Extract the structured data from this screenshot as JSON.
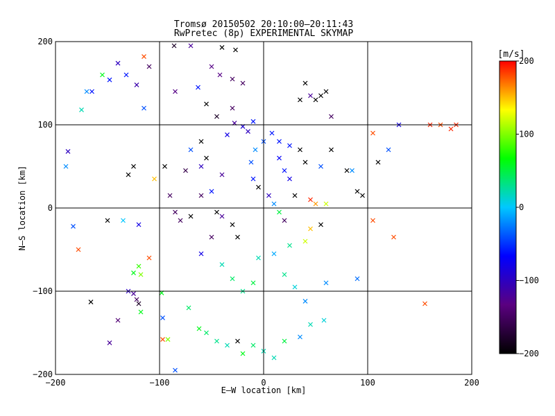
{
  "chart_data": {
    "type": "scatter",
    "title": "Tromsø 20150502 20:10:00–20:11:43",
    "subtitle": "RwPretec (8p) EXPERIMENTAL SKYMAP",
    "xlabel": "E–W location [km]",
    "ylabel": "N–S location [km]",
    "xlim": [
      -200,
      200
    ],
    "ylim": [
      -200,
      200
    ],
    "xticks": [
      -200,
      -100,
      0,
      100,
      200
    ],
    "yticks": [
      -200,
      -100,
      0,
      100,
      200
    ],
    "xtick_labels": [
      "−200",
      "−100",
      "0",
      "100",
      "200"
    ],
    "ytick_labels": [
      "−200",
      "−100",
      "0",
      "100",
      "200"
    ],
    "grid": true,
    "marker_styles": [
      "dot",
      "cross"
    ],
    "colorbar": {
      "label": "[m/s]",
      "range": [
        -200,
        200
      ],
      "ticks": [
        200,
        100,
        0,
        -100,
        -200
      ],
      "tick_labels": [
        "200",
        "100",
        "0",
        "−100",
        "−200"
      ],
      "colormap": [
        "#000000",
        "#5a0080",
        "#0000ff",
        "#00c8ff",
        "#00ff00",
        "#ffff00",
        "#ff0000"
      ]
    },
    "series": [
      {
        "marker": "cross",
        "points": [
          [
            -115,
            182,
            180
          ],
          [
            -140,
            174,
            -100
          ],
          [
            -155,
            160,
            60
          ],
          [
            -148,
            154,
            -60
          ],
          [
            -170,
            140,
            -20
          ],
          [
            -165,
            140,
            -60
          ],
          [
            -132,
            160,
            -60
          ],
          [
            -175,
            118,
            20
          ],
          [
            -110,
            170,
            -150
          ],
          [
            -115,
            120,
            -40
          ],
          [
            -122,
            148,
            -110
          ],
          [
            -86,
            195,
            -180
          ],
          [
            -70,
            195,
            -120
          ],
          [
            -40,
            193,
            -200
          ],
          [
            -27,
            190,
            -200
          ],
          [
            -50,
            170,
            -130
          ],
          [
            -42,
            160,
            -130
          ],
          [
            -30,
            155,
            -150
          ],
          [
            -63,
            145,
            -60
          ],
          [
            -85,
            140,
            -130
          ],
          [
            -20,
            150,
            -150
          ],
          [
            -55,
            125,
            -200
          ],
          [
            -30,
            120,
            -150
          ],
          [
            -45,
            110,
            -180
          ],
          [
            -28,
            102,
            -120
          ],
          [
            -20,
            98,
            -90
          ],
          [
            -10,
            104,
            -60
          ],
          [
            -35,
            88,
            -80
          ],
          [
            -15,
            92,
            -100
          ],
          [
            -60,
            80,
            -200
          ],
          [
            -70,
            70,
            -40
          ],
          [
            -55,
            60,
            -200
          ],
          [
            -75,
            45,
            -160
          ],
          [
            -95,
            50,
            -200
          ],
          [
            -60,
            50,
            -100
          ],
          [
            -40,
            40,
            -120
          ],
          [
            -50,
            20,
            -60
          ],
          [
            -90,
            15,
            -150
          ],
          [
            -85,
            -5,
            -150
          ],
          [
            -70,
            -10,
            -200
          ],
          [
            -40,
            -10,
            -120
          ],
          [
            -30,
            -20,
            -200
          ],
          [
            -50,
            -35,
            -150
          ],
          [
            -60,
            -55,
            -80
          ],
          [
            -120,
            -20,
            -80
          ],
          [
            -135,
            -15,
            0
          ],
          [
            -150,
            -15,
            -200
          ],
          [
            -178,
            -50,
            180
          ],
          [
            -183,
            -22,
            -40
          ],
          [
            -190,
            50,
            -20
          ],
          [
            -188,
            68,
            -100
          ],
          [
            -125,
            50,
            -200
          ],
          [
            -130,
            40,
            -200
          ],
          [
            -105,
            35,
            150
          ],
          [
            -110,
            -60,
            180
          ],
          [
            -120,
            -70,
            80
          ],
          [
            -125,
            -78,
            60
          ],
          [
            -118,
            -80,
            100
          ],
          [
            -130,
            -100,
            -100
          ],
          [
            -122,
            -110,
            -150
          ],
          [
            -125,
            -103,
            -120
          ],
          [
            -120,
            -115,
            -180
          ],
          [
            -118,
            -125,
            60
          ],
          [
            -140,
            -135,
            -140
          ],
          [
            -166,
            -113,
            -200
          ],
          [
            -148,
            -162,
            -120
          ],
          [
            -97,
            -132,
            -40
          ],
          [
            -92,
            -158,
            100
          ],
          [
            -97,
            -158,
            180
          ],
          [
            -85,
            -195,
            -40
          ],
          [
            -98,
            -102,
            60
          ],
          [
            -72,
            -120,
            40
          ],
          [
            -62,
            -145,
            60
          ],
          [
            -55,
            -150,
            40
          ],
          [
            -45,
            -160,
            30
          ],
          [
            -35,
            -165,
            20
          ],
          [
            -25,
            -160,
            -200
          ],
          [
            -20,
            -175,
            60
          ],
          [
            -10,
            -165,
            40
          ],
          [
            0,
            -172,
            20
          ],
          [
            10,
            -180,
            20
          ],
          [
            20,
            -160,
            50
          ],
          [
            35,
            -155,
            -20
          ],
          [
            45,
            -140,
            20
          ],
          [
            58,
            -135,
            10
          ],
          [
            40,
            -112,
            -20
          ],
          [
            30,
            -95,
            10
          ],
          [
            20,
            -80,
            30
          ],
          [
            -10,
            -90,
            50
          ],
          [
            -20,
            -100,
            30
          ],
          [
            -30,
            -85,
            40
          ],
          [
            -40,
            -68,
            20
          ],
          [
            -5,
            -60,
            20
          ],
          [
            10,
            -55,
            -10
          ],
          [
            25,
            -45,
            30
          ],
          [
            40,
            -40,
            120
          ],
          [
            45,
            -25,
            150
          ],
          [
            55,
            -20,
            -200
          ],
          [
            60,
            5,
            120
          ],
          [
            50,
            5,
            160
          ],
          [
            45,
            10,
            190
          ],
          [
            30,
            15,
            -200
          ],
          [
            25,
            35,
            -80
          ],
          [
            20,
            45,
            -60
          ],
          [
            15,
            60,
            -70
          ],
          [
            40,
            55,
            -200
          ],
          [
            55,
            50,
            -40
          ],
          [
            65,
            70,
            -200
          ],
          [
            80,
            45,
            -200
          ],
          [
            90,
            20,
            -200
          ],
          [
            95,
            15,
            -200
          ],
          [
            110,
            55,
            -200
          ],
          [
            85,
            45,
            -20
          ],
          [
            105,
            90,
            180
          ],
          [
            120,
            70,
            -40
          ],
          [
            130,
            100,
            -80
          ],
          [
            160,
            100,
            190
          ],
          [
            170,
            100,
            180
          ],
          [
            180,
            95,
            190
          ],
          [
            185,
            100,
            190
          ],
          [
            125,
            -35,
            180
          ],
          [
            105,
            -15,
            180
          ],
          [
            155,
            -115,
            180
          ],
          [
            90,
            -85,
            -30
          ],
          [
            60,
            -90,
            -20
          ],
          [
            35,
            130,
            -200
          ],
          [
            45,
            135,
            -120
          ],
          [
            50,
            130,
            -200
          ],
          [
            55,
            135,
            -200
          ],
          [
            60,
            140,
            -200
          ],
          [
            40,
            150,
            -200
          ],
          [
            65,
            110,
            -150
          ],
          [
            35,
            70,
            -200
          ],
          [
            25,
            75,
            -60
          ],
          [
            15,
            80,
            -60
          ],
          [
            8,
            90,
            -60
          ],
          [
            0,
            80,
            -40
          ],
          [
            -8,
            70,
            -20
          ],
          [
            -12,
            55,
            -40
          ],
          [
            -10,
            35,
            -60
          ],
          [
            -5,
            25,
            -200
          ],
          [
            5,
            15,
            -100
          ],
          [
            10,
            5,
            -20
          ],
          [
            15,
            -5,
            50
          ],
          [
            20,
            -15,
            -150
          ],
          [
            -25,
            -35,
            -200
          ],
          [
            -45,
            -5,
            -200
          ],
          [
            -60,
            15,
            -150
          ],
          [
            -80,
            -15,
            -150
          ]
        ]
      }
    ]
  }
}
